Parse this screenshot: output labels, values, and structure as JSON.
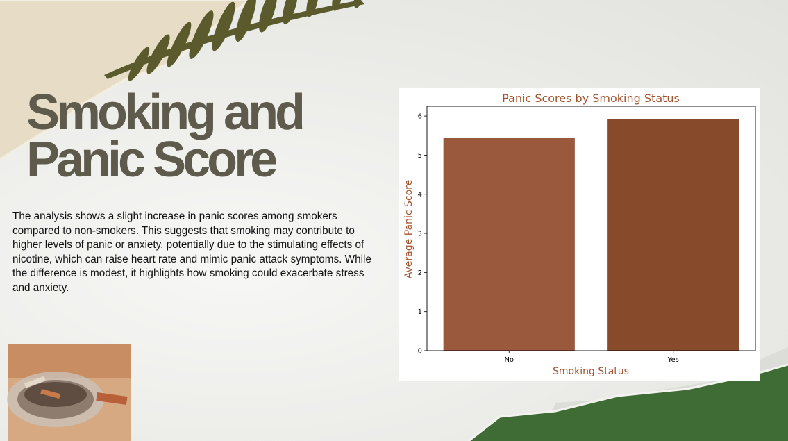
{
  "slide": {
    "title_line1": "Smoking and",
    "title_line2": "Panic Score",
    "body": "The analysis shows a slight increase in panic scores among smokers compared to non-smokers. This suggests that smoking may contribute to higher levels of panic or anxiety, potentially due to the stimulating effects of nicotine, which can raise heart rate and mimic panic attack symptoms. While the difference is modest, it highlights how smoking could exacerbate stress and anxiety.",
    "title_color": "#5e5a4c"
  },
  "chart_data": {
    "type": "bar",
    "title": "Panic Scores by Smoking Status",
    "xlabel": "Smoking Status",
    "ylabel": "Average Panic Score",
    "categories": [
      "No",
      "Yes"
    ],
    "values": [
      5.45,
      5.92
    ],
    "ylim": [
      0,
      6.25
    ],
    "yticks": [
      0,
      1,
      2,
      3,
      4,
      5,
      6
    ],
    "bar_colors": [
      "#9a583c",
      "#874a2b"
    ],
    "label_color": "#a0522d",
    "grid": false,
    "legend": "none"
  }
}
